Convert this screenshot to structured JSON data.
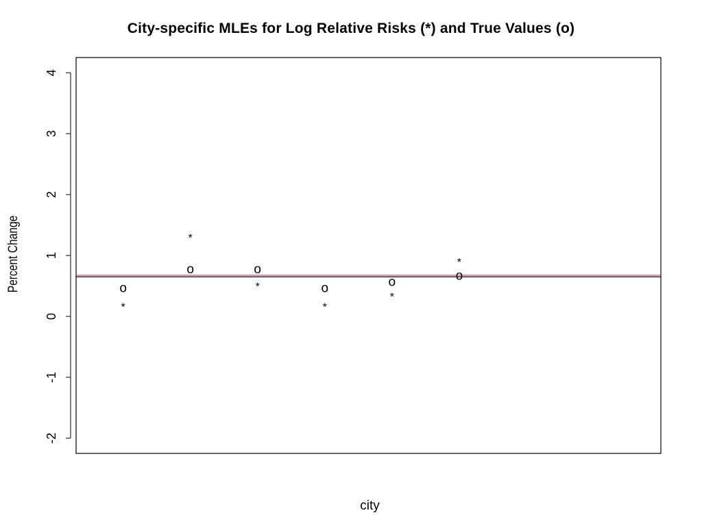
{
  "chart_data": {
    "type": "scatter",
    "title": "City-specific MLEs for Log Relative Risks (*) and True Values (o)",
    "xlabel": "city",
    "ylabel": "Percent Change",
    "xlim": [
      0.3,
      9.0
    ],
    "ylim": [
      -2.25,
      4.25
    ],
    "y_ticks": [
      -2,
      -1,
      0,
      1,
      2,
      3,
      4
    ],
    "y_tick_labels": [
      "-2",
      "-1",
      "0",
      "1",
      "2",
      "3",
      "4"
    ],
    "x_ticks": [],
    "grid": false,
    "legend": "none",
    "series": [
      {
        "name": "MLE",
        "marker": "*",
        "x": [
          1,
          2,
          3,
          4,
          5,
          6
        ],
        "y": [
          0.21,
          1.35,
          0.55,
          0.21,
          0.38,
          0.95
        ]
      },
      {
        "name": "True",
        "marker": "o",
        "x": [
          1,
          2,
          3,
          4,
          5,
          6
        ],
        "y": [
          0.46,
          0.77,
          0.77,
          0.46,
          0.56,
          0.66
        ]
      }
    ],
    "reference_lines": [
      {
        "y": 0.675,
        "color": "#df5286"
      },
      {
        "y": 0.65,
        "color": "#000000"
      }
    ]
  }
}
